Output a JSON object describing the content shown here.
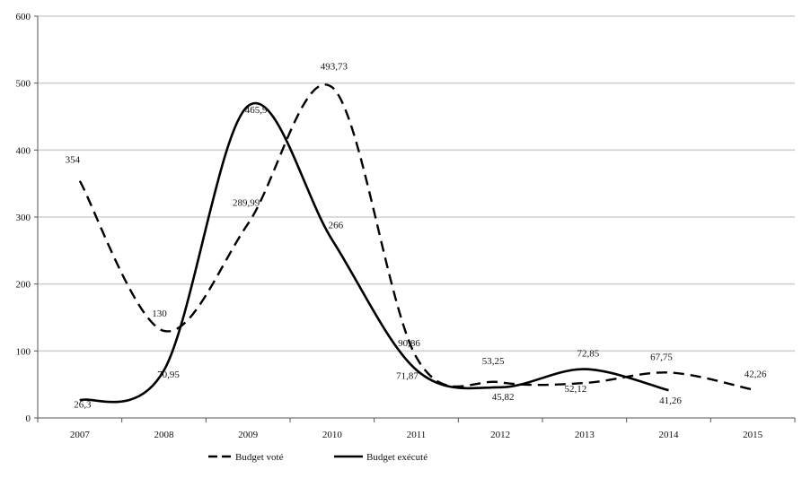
{
  "chart_data": {
    "type": "line",
    "title": "",
    "xlabel": "",
    "ylabel": "",
    "categories": [
      "2007",
      "2008",
      "2009",
      "2010",
      "2011",
      "2012",
      "2013",
      "2014",
      "2015"
    ],
    "y_ticks": [
      "0",
      "100",
      "200",
      "300",
      "400",
      "500",
      "600"
    ],
    "ylim": [
      0,
      600
    ],
    "grid": "horizontal",
    "legend_position": "bottom",
    "series": [
      {
        "name": "Budget voté",
        "line_style": "dashed",
        "color": "#000000",
        "values": [
          354,
          130,
          289.99,
          493.73,
          90.86,
          53.25,
          52.12,
          67.75,
          42.26
        ],
        "labels": [
          "354",
          "130",
          "289,99",
          "493,73",
          "90,86",
          "53,25",
          "52,12",
          "67,75",
          "42,26"
        ]
      },
      {
        "name": "Budget exécuté",
        "line_style": "solid",
        "color": "#000000",
        "values": [
          26.3,
          70.95,
          465.9,
          266,
          71.87,
          45.82,
          72.85,
          41.26,
          null
        ],
        "labels": [
          "26,3",
          "70,95",
          "465,9",
          "266",
          "71,87",
          "45,82",
          "72,85",
          "41,26",
          null
        ]
      }
    ]
  }
}
